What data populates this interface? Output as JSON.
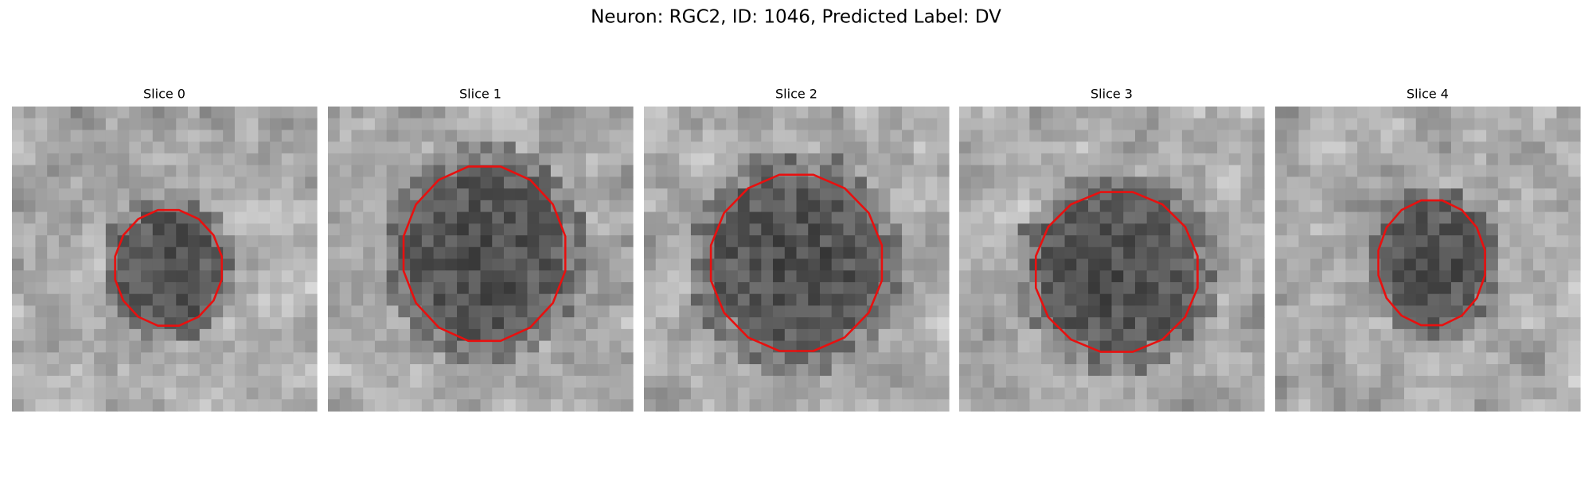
{
  "title": "Neuron: RGC2, ID: 1046, Predicted Label: DV",
  "panels": [
    {
      "title": "Slice 0"
    },
    {
      "title": "Slice 1"
    },
    {
      "title": "Slice 2"
    },
    {
      "title": "Slice 3"
    },
    {
      "title": "Slice 4"
    }
  ]
}
